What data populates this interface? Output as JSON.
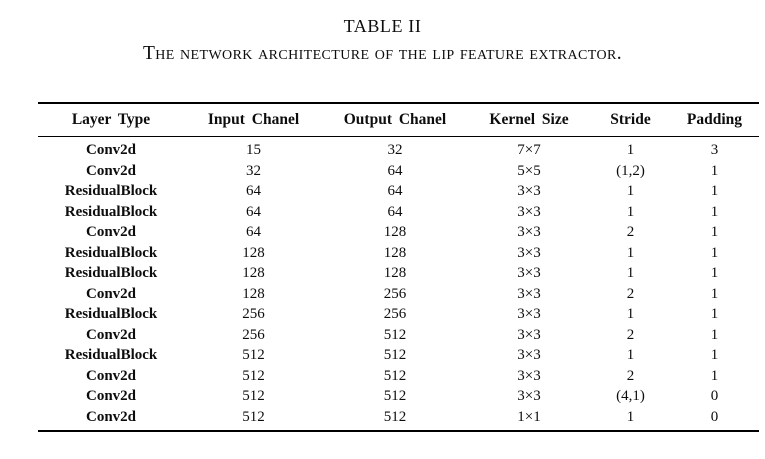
{
  "caption": {
    "label": "TABLE II",
    "title": "The network architecture of the lip feature extractor."
  },
  "table": {
    "headers": [
      "Layer Type",
      "Input Chanel",
      "Output Chanel",
      "Kernel Size",
      "Stride",
      "Padding"
    ],
    "rows": [
      [
        "Conv2d",
        "15",
        "32",
        "7×7",
        "1",
        "3"
      ],
      [
        "Conv2d",
        "32",
        "64",
        "5×5",
        "(1,2)",
        "1"
      ],
      [
        "ResidualBlock",
        "64",
        "64",
        "3×3",
        "1",
        "1"
      ],
      [
        "ResidualBlock",
        "64",
        "64",
        "3×3",
        "1",
        "1"
      ],
      [
        "Conv2d",
        "64",
        "128",
        "3×3",
        "2",
        "1"
      ],
      [
        "ResidualBlock",
        "128",
        "128",
        "3×3",
        "1",
        "1"
      ],
      [
        "ResidualBlock",
        "128",
        "128",
        "3×3",
        "1",
        "1"
      ],
      [
        "Conv2d",
        "128",
        "256",
        "3×3",
        "2",
        "1"
      ],
      [
        "ResidualBlock",
        "256",
        "256",
        "3×3",
        "1",
        "1"
      ],
      [
        "Conv2d",
        "256",
        "512",
        "3×3",
        "2",
        "1"
      ],
      [
        "ResidualBlock",
        "512",
        "512",
        "3×3",
        "1",
        "1"
      ],
      [
        "Conv2d",
        "512",
        "512",
        "3×3",
        "2",
        "1"
      ],
      [
        "Conv2d",
        "512",
        "512",
        "3×3",
        "(4,1)",
        "0"
      ],
      [
        "Conv2d",
        "512",
        "512",
        "1×1",
        "1",
        "0"
      ]
    ]
  },
  "colors": {
    "text": "#0d0d0d",
    "background": "#ffffff",
    "rule": "#000000"
  }
}
